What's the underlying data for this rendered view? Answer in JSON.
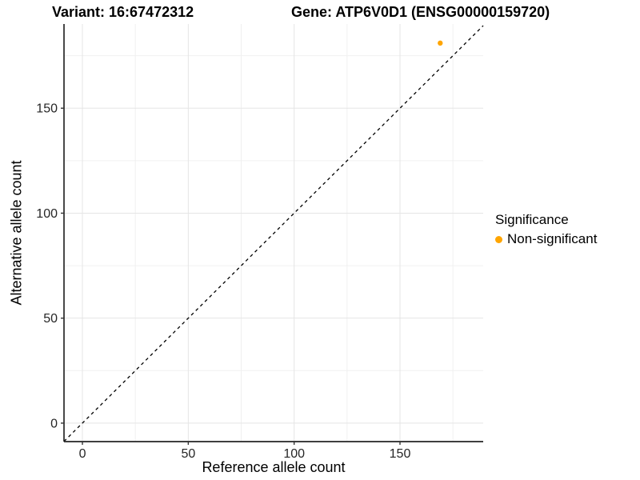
{
  "header": {
    "variant_title": "Variant: 16:67472312",
    "gene_title": "Gene: ATP6V0D1 (ENSG00000159720)"
  },
  "legend": {
    "title": "Significance",
    "items": [
      {
        "label": "Non-significant",
        "color": "#FFA500"
      }
    ]
  },
  "chart_data": {
    "type": "scatter",
    "title_left": "Variant: 16:67472312",
    "title_right": "Gene: ATP6V0D1 (ENSG00000159720)",
    "xlabel": "Reference allele count",
    "ylabel": "Alternative allele count",
    "xlim": [
      -8.7,
      189.3
    ],
    "ylim": [
      -8.8,
      190.1
    ],
    "x_ticks": [
      0,
      50,
      100,
      150
    ],
    "y_ticks": [
      0,
      50,
      100,
      150
    ],
    "x_minor_ticks": [
      25,
      75,
      125,
      175
    ],
    "y_minor_ticks": [
      25,
      75,
      125,
      175
    ],
    "grid": "major+minor",
    "legend_position": "right",
    "identity_line": {
      "slope": 1,
      "intercept": 0,
      "style": "dashed",
      "color": "#000000"
    },
    "series": [
      {
        "name": "Non-significant",
        "color": "#FFA500",
        "points": [
          {
            "x": 169,
            "y": 181
          }
        ]
      }
    ]
  }
}
